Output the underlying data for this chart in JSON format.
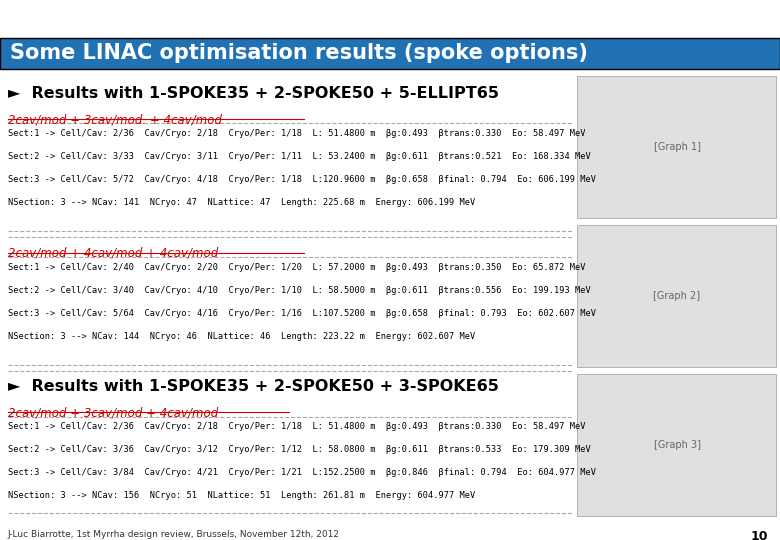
{
  "title": "Some LINAC optimisation results (spoke options)",
  "title_bg": "#2171b5",
  "title_fg": "#ffffff",
  "bg_color": "#ffffff",
  "section1_header": "►  Results with 1-SPOKE35 + 2-SPOKE50 + 5-ELLIPT65",
  "section2_header": "►  Results with 1-SPOKE35 + 2-SPOKE50 + 3-SPOKE65",
  "sub1a": "2cav/mod + 3cav/mod. + 4cav/mod",
  "sub1b": "2cav/mod + 4cav/mod + 4cav/mod",
  "sub2a": "2cav/mod + 3cav/mod + 4cav/mod",
  "block1a_lines": [
    "Sect:1 -> Cell/Cav: 2/36  Cav/Cryo: 2/18  Cryo/Per: 1/18  L: 51.4800 m  βg:0.493  βtrans:0.330  Eo: 58.497 MeV",
    "Sect:2 -> Cell/Cav: 3/33  Cav/Cryo: 3/11  Cryo/Per: 1/11  L: 53.2400 m  βg:0.611  βtrans:0.521  Eo: 168.334 MeV",
    "Sect:3 -> Cell/Cav: 5/72  Cav/Cryo: 4/18  Cryo/Per: 1/18  L:120.9600 m  βg:0.658  βfinal: 0.794  Eo: 606.199 MeV",
    "NSection: 3 --> NCav: 141  NCryo: 47  NLattice: 47  Length: 225.68 m  Energy: 606.199 MeV"
  ],
  "block1b_lines": [
    "Sect:1 -> Cell/Cav: 2/40  Cav/Cryo: 2/20  Cryo/Per: 1/20  L: 57.2000 m  βg:0.493  βtrans:0.350  Eo: 65.872 MeV",
    "Sect:2 -> Cell/Cav: 3/40  Cav/Cryo: 4/10  Cryo/Per: 1/10  L: 58.5000 m  βg:0.611  βtrans:0.556  Eo: 199.193 MeV",
    "Sect:3 -> Cell/Cav: 5/64  Cav/Cryo: 4/16  Cryo/Per: 1/16  L:107.5200 m  βg:0.658  βfinal: 0.793  Eo: 602.607 MeV",
    "NSection: 3 --> NCav: 144  NCryo: 46  NLattice: 46  Length: 223.22 m  Energy: 602.607 MeV"
  ],
  "block2a_lines": [
    "Sect:1 -> Cell/Cav: 2/36  Cav/Cryo: 2/18  Cryo/Per: 1/18  L: 51.4800 m  βg:0.493  βtrans:0.330  Eo: 58.497 MeV",
    "Sect:2 -> Cell/Cav: 3/36  Cav/Cryo: 3/12  Cryo/Per: 1/12  L: 58.0800 m  βg:0.611  βtrans:0.533  Eo: 179.309 MeV",
    "Sect:3 -> Cell/Cav: 3/84  Cav/Cryo: 4/21  Cryo/Per: 1/21  L:152.2500 m  βg:0.846  βfinal: 0.794  Eo: 604.977 MeV",
    "NSection: 3 --> NCav: 156  NCryo: 51  NLattice: 51  Length: 261.81 m  Energy: 604.977 MeV"
  ],
  "footer": "J-Luc Biarrotte, 1st Myrrha design review, Brussels, November 12th, 2012",
  "page_number": "10",
  "link_color": "#cc0000",
  "separator_color": "#aaaaaa"
}
